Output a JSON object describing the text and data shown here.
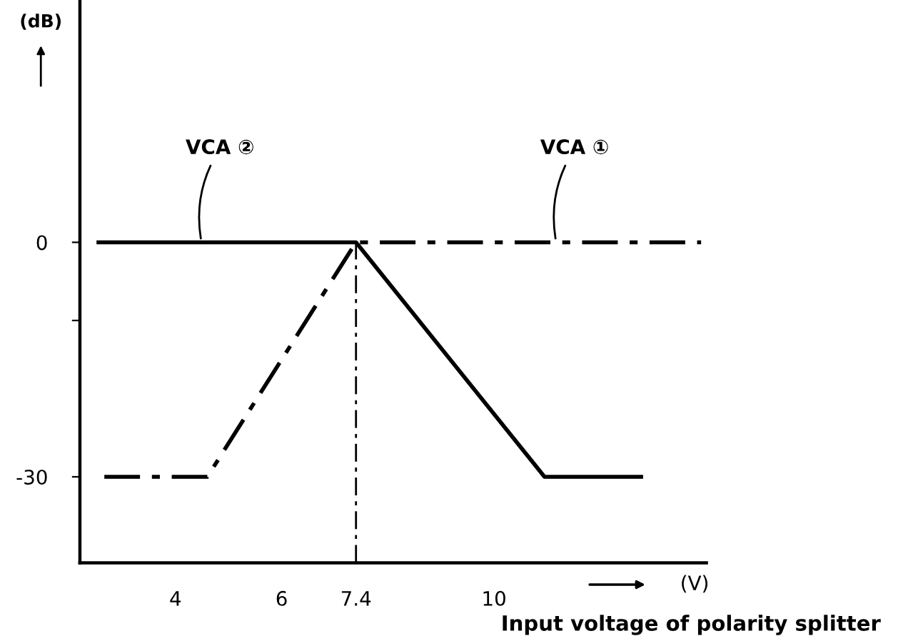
{
  "chart_data": {
    "type": "line",
    "ylabel": "(dB)",
    "xlabel": "Input voltage of polarity splitter",
    "annotations": [
      "(V)"
    ],
    "series": [
      {
        "name": "VCA ②",
        "color": "#000000",
        "line_style": "solid",
        "x": [
          2.55,
          7.4,
          10.95,
          12.77
        ],
        "values": [
          0,
          0,
          -30,
          -30
        ]
      },
      {
        "name": "VCA ①",
        "color": "#000000",
        "line_style": "dashed",
        "x": [
          2.66,
          4.6,
          7.4,
          13.9
        ],
        "values": [
          -30,
          -30,
          0,
          0
        ]
      }
    ],
    "xlim": [
      2.2,
      14.0
    ],
    "xticks": [
      4,
      6,
      7.4,
      10
    ],
    "ylim": [
      -41,
      31
    ],
    "yticks": [
      0,
      {
        "value": -10,
        "label": null
      },
      -30
    ],
    "ref_lines": [
      {
        "axis": "x",
        "value": 7.4,
        "line_style": "dashed",
        "color": "#000000"
      }
    ],
    "grid": false,
    "legend": false,
    "marker": "none"
  }
}
